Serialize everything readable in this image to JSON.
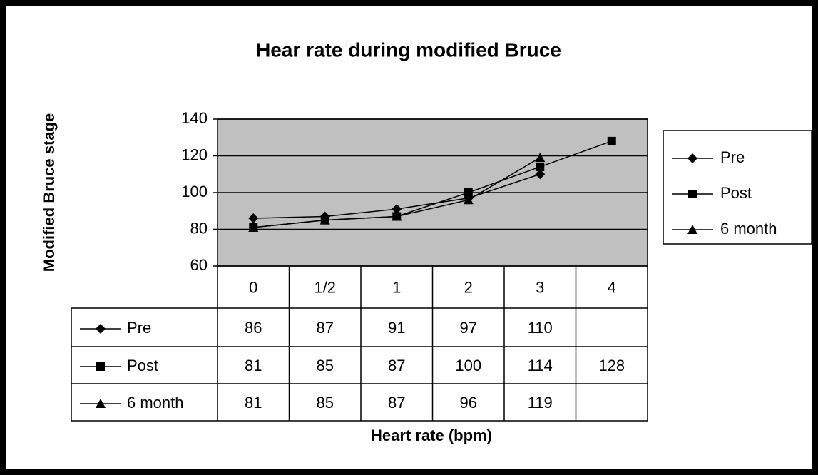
{
  "chart_data": {
    "type": "line",
    "title": "Hear rate during modified Bruce",
    "xlabel": "Heart rate (bpm)",
    "ylabel": "Modified Bruce stage",
    "categories": [
      "0",
      "1/2",
      "1",
      "2",
      "3",
      "4"
    ],
    "series": [
      {
        "name": "Pre",
        "color": "#000000",
        "marker": "diamond",
        "values": [
          86,
          87,
          91,
          97,
          110,
          null
        ]
      },
      {
        "name": "Post",
        "color": "#000000",
        "marker": "square",
        "values": [
          81,
          85,
          87,
          100,
          114,
          128
        ]
      },
      {
        "name": "6 month",
        "color": "#000000",
        "marker": "triangle",
        "values": [
          81,
          85,
          87,
          96,
          119,
          null
        ]
      }
    ],
    "ylim": [
      60,
      140
    ],
    "yticks": [
      60,
      80,
      100,
      120,
      140
    ],
    "grid": true,
    "plot_background": "#c0c0c0",
    "legend": "right",
    "data_table": true
  }
}
